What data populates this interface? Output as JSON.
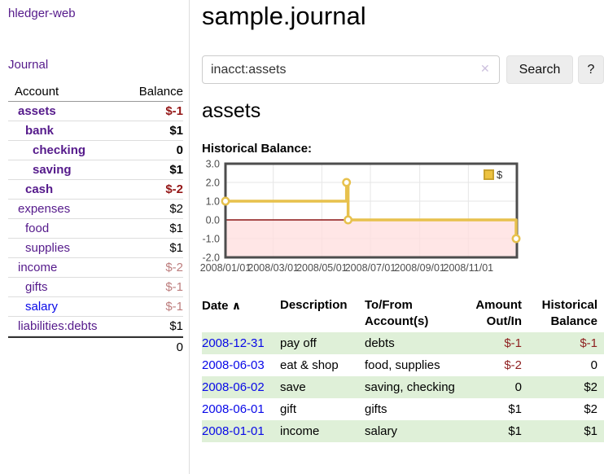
{
  "app": {
    "brand": "hledger-web",
    "nav_journal": "Journal"
  },
  "sidebar": {
    "accounts": {
      "header": {
        "account": "Account",
        "balance": "Balance"
      },
      "rows": [
        {
          "name": "assets",
          "balance": "$-1"
        },
        {
          "name": "bank",
          "balance": "$1"
        },
        {
          "name": "checking",
          "balance": "0"
        },
        {
          "name": "saving",
          "balance": "$1"
        },
        {
          "name": "cash",
          "balance": "$-2"
        },
        {
          "name": "expenses",
          "balance": "$2"
        },
        {
          "name": "food",
          "balance": "$1"
        },
        {
          "name": "supplies",
          "balance": "$1"
        },
        {
          "name": "income",
          "balance": "$-2"
        },
        {
          "name": "gifts",
          "balance": "$-1"
        },
        {
          "name": "salary",
          "balance": "$-1"
        },
        {
          "name": "liabilities:debts",
          "balance": "$1"
        }
      ],
      "total": "0"
    }
  },
  "header": {
    "title": "sample.journal"
  },
  "search": {
    "value": "inacct:assets",
    "clear_icon": "✕",
    "search_label": "Search",
    "help_label": "?"
  },
  "account_page": {
    "heading": "assets",
    "chart_label": "Historical Balance:"
  },
  "chart_data": {
    "type": "line",
    "style": "steps",
    "title": "Historical Balance:",
    "series": [
      {
        "name": "$",
        "color": "#e7c14d",
        "points": [
          [
            "2008-01-01",
            1
          ],
          [
            "2008-06-01",
            2
          ],
          [
            "2008-06-03",
            0
          ],
          [
            "2008-12-31",
            -1
          ]
        ]
      }
    ],
    "xlim": [
      "2008-01-01",
      "2009-01-01"
    ],
    "ylim": [
      -2,
      3
    ],
    "yticks": [
      3,
      2,
      1,
      0,
      -1,
      -2
    ],
    "xticks": [
      {
        "date": "2008-01-01",
        "label": "2008/01/01"
      },
      {
        "date": "2008-03-01",
        "label": "2008/03/01"
      },
      {
        "date": "2008-05-01",
        "label": "2008/05/01"
      },
      {
        "date": "2008-07-01",
        "label": "2008/07/01"
      },
      {
        "date": "2008-09-01",
        "label": "2008/09/01"
      },
      {
        "date": "2008-11-01",
        "label": "2008/11/01"
      }
    ],
    "grid": true,
    "legend": {
      "label": "$",
      "position": "top-right"
    },
    "zero_line_color": "#8b1515",
    "negative_region_color": "#ffdddd"
  },
  "register": {
    "headers": {
      "date": "Date",
      "sort_indicator": "∧",
      "description": "Description",
      "tofrom": "To/From Account(s)",
      "amount": "Amount Out/In",
      "balance": "Historical Balance"
    },
    "rows": [
      {
        "date": "2008-12-31",
        "description": "pay off",
        "accounts": "debts",
        "amount": "$-1",
        "balance": "$-1"
      },
      {
        "date": "2008-06-03",
        "description": "eat & shop",
        "accounts": "food, supplies",
        "amount": "$-2",
        "balance": "0"
      },
      {
        "date": "2008-06-02",
        "description": "save",
        "accounts": "saving, checking",
        "amount": "0",
        "balance": "$2"
      },
      {
        "date": "2008-06-01",
        "description": "gift",
        "accounts": "gifts",
        "amount": "$1",
        "balance": "$2"
      },
      {
        "date": "2008-01-01",
        "description": "income",
        "accounts": "salary",
        "amount": "$1",
        "balance": "$1"
      }
    ]
  }
}
